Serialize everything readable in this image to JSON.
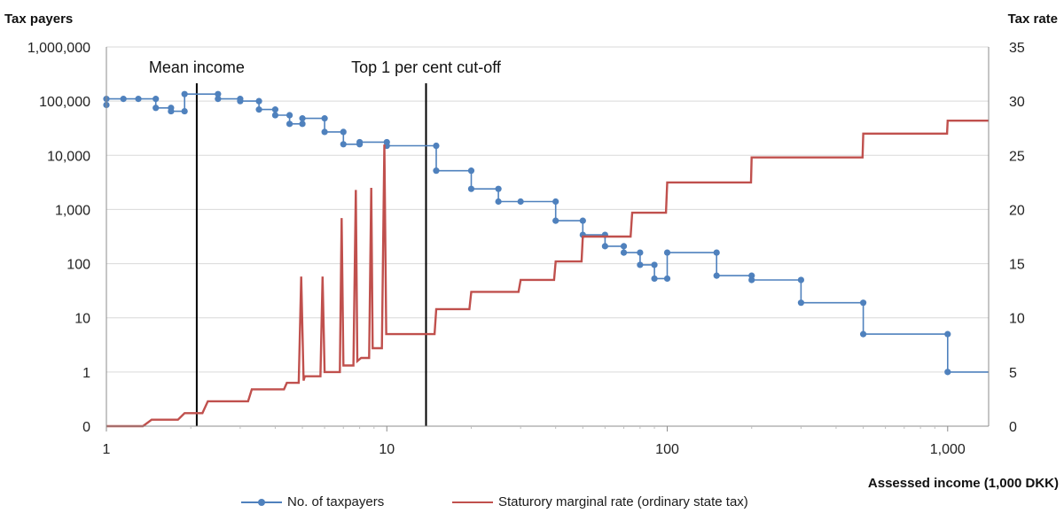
{
  "chart_data": {
    "type": "line",
    "title": "",
    "left_axis_title": "Tax payers",
    "right_axis_title": "Tax rate",
    "xlabel": "Assessed income (1,000 DKK)",
    "x_scale": "log",
    "xlim": [
      1,
      1400
    ],
    "x_ticks": [
      1,
      10,
      100,
      1000
    ],
    "x_tick_labels": [
      "1",
      "10",
      "100",
      "1,000"
    ],
    "y_left_scale": "log",
    "y_left_ticks": [
      "0",
      "1",
      "10",
      "100",
      "1,000",
      "10,000",
      "100,000",
      "1,000,000"
    ],
    "y_right_ticks": [
      0,
      5,
      10,
      15,
      20,
      25,
      30,
      35
    ],
    "ylim_right": [
      0,
      35
    ],
    "grid": "horizontal",
    "annotations": [
      {
        "text": "Mean income",
        "x": 2.1
      },
      {
        "text": "Top 1 per cent cut-off",
        "x": 13.8
      }
    ],
    "legend_position": "bottom",
    "series": [
      {
        "name": "No. of taxpayers",
        "axis": "left",
        "color": "#4f81bd",
        "marker": "circle",
        "step": true,
        "points": [
          [
            1,
            85000
          ],
          [
            1,
            110000
          ],
          [
            1.15,
            110000
          ],
          [
            1.3,
            110000
          ],
          [
            1.5,
            110000
          ],
          [
            1.5,
            75000
          ],
          [
            1.7,
            75000
          ],
          [
            1.7,
            65000
          ],
          [
            1.9,
            65000
          ],
          [
            1.9,
            135000
          ],
          [
            2.5,
            135000
          ],
          [
            2.5,
            110000
          ],
          [
            3,
            110000
          ],
          [
            3,
            100000
          ],
          [
            3.5,
            100000
          ],
          [
            3.5,
            70000
          ],
          [
            4,
            70000
          ],
          [
            4,
            55000
          ],
          [
            4.5,
            55000
          ],
          [
            4.5,
            38000
          ],
          [
            5,
            38000
          ],
          [
            5,
            48000
          ],
          [
            6,
            48000
          ],
          [
            6,
            27000
          ],
          [
            7,
            27000
          ],
          [
            7,
            16000
          ],
          [
            8,
            16000
          ],
          [
            8,
            17500
          ],
          [
            10,
            17500
          ],
          [
            10,
            15000
          ],
          [
            15,
            15000
          ],
          [
            15,
            5200
          ],
          [
            20,
            5200
          ],
          [
            20,
            2400
          ],
          [
            25,
            2400
          ],
          [
            25,
            1400
          ],
          [
            30,
            1400
          ],
          [
            40,
            1400
          ],
          [
            40,
            620
          ],
          [
            50,
            620
          ],
          [
            50,
            340
          ],
          [
            60,
            340
          ],
          [
            60,
            210
          ],
          [
            70,
            210
          ],
          [
            70,
            160
          ],
          [
            80,
            160
          ],
          [
            80,
            95
          ],
          [
            90,
            95
          ],
          [
            90,
            53
          ],
          [
            100,
            53
          ],
          [
            100,
            160
          ],
          [
            150,
            160
          ],
          [
            150,
            60
          ],
          [
            200,
            60
          ],
          [
            200,
            50
          ],
          [
            300,
            50
          ],
          [
            300,
            19
          ],
          [
            500,
            19
          ],
          [
            500,
            5
          ],
          [
            1000,
            5
          ],
          [
            1000,
            1
          ],
          [
            1400,
            1
          ]
        ]
      },
      {
        "name": "Staturory marginal rate (ordinary state tax)",
        "axis": "right",
        "color": "#c0504d",
        "step": true,
        "points": [
          [
            1,
            0
          ],
          [
            1.35,
            0
          ],
          [
            1.45,
            0.6
          ],
          [
            1.8,
            0.6
          ],
          [
            1.9,
            1.2
          ],
          [
            2.2,
            1.2
          ],
          [
            2.3,
            2.3
          ],
          [
            3.2,
            2.3
          ],
          [
            3.3,
            3.4
          ],
          [
            4.3,
            3.4
          ],
          [
            4.4,
            4
          ],
          [
            4.85,
            4
          ],
          [
            4.95,
            13.8
          ],
          [
            5.05,
            4.2
          ],
          [
            5.1,
            4.6
          ],
          [
            5.8,
            4.6
          ],
          [
            5.9,
            13.8
          ],
          [
            6,
            5
          ],
          [
            6.8,
            5
          ],
          [
            6.9,
            19.2
          ],
          [
            7,
            5.6
          ],
          [
            7.6,
            5.6
          ],
          [
            7.75,
            21.8
          ],
          [
            7.85,
            6
          ],
          [
            8.1,
            6.3
          ],
          [
            8.65,
            6.3
          ],
          [
            8.8,
            22
          ],
          [
            8.9,
            7.2
          ],
          [
            9.6,
            7.2
          ],
          [
            9.8,
            26
          ],
          [
            9.95,
            8.5
          ],
          [
            14.8,
            8.5
          ],
          [
            15,
            10.8
          ],
          [
            19.7,
            10.8
          ],
          [
            20,
            12.4
          ],
          [
            29.5,
            12.4
          ],
          [
            30,
            13.5
          ],
          [
            39.5,
            13.5
          ],
          [
            40,
            15.2
          ],
          [
            49.5,
            15.2
          ],
          [
            50,
            17.5
          ],
          [
            74,
            17.5
          ],
          [
            75,
            19.7
          ],
          [
            99,
            19.7
          ],
          [
            100,
            22.5
          ],
          [
            199,
            22.5
          ],
          [
            200,
            24.8
          ],
          [
            497,
            24.8
          ],
          [
            500,
            27
          ],
          [
            995,
            27
          ],
          [
            1000,
            28.2
          ],
          [
            1400,
            28.2
          ]
        ]
      }
    ]
  }
}
